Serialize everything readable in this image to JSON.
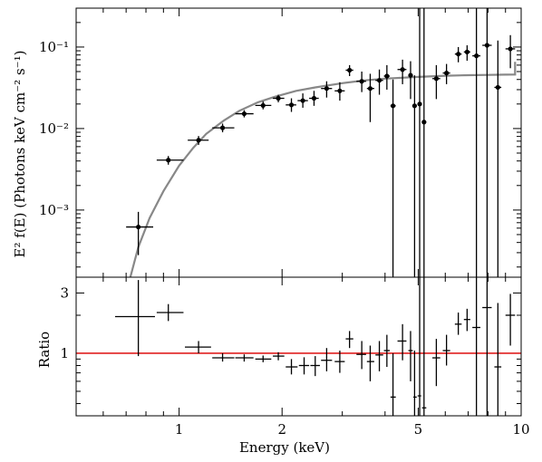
{
  "chart_data": [
    {
      "panel": "top",
      "type": "scatter",
      "yscale": "log",
      "xscale": "log",
      "ylabel": "E² f(E) (Photons keV cm⁻² s⁻¹)",
      "xlim": [
        0.5,
        10
      ],
      "ylim": [
        0.00015,
        0.3
      ],
      "yticks": [
        0.001,
        0.01,
        0.1
      ],
      "ytick_labels": [
        "10⁻³",
        "10⁻²",
        "10⁻¹"
      ],
      "data_color": "#000000",
      "model_color": "#888888",
      "points": [
        {
          "x": 0.76,
          "xlo": 0.7,
          "xhi": 0.84,
          "y": 0.00062,
          "ylo": 0.00028,
          "yhi": 0.00095
        },
        {
          "x": 0.93,
          "xlo": 0.86,
          "xhi": 1.03,
          "y": 0.0041,
          "ylo": 0.0036,
          "yhi": 0.0046
        },
        {
          "x": 1.14,
          "xlo": 1.06,
          "xhi": 1.22,
          "y": 0.0072,
          "ylo": 0.0063,
          "yhi": 0.0081
        },
        {
          "x": 1.34,
          "xlo": 1.25,
          "xhi": 1.45,
          "y": 0.0102,
          "ylo": 0.009,
          "yhi": 0.0115
        },
        {
          "x": 1.55,
          "xlo": 1.46,
          "xhi": 1.65,
          "y": 0.0152,
          "ylo": 0.0137,
          "yhi": 0.0168
        },
        {
          "x": 1.76,
          "xlo": 1.67,
          "xhi": 1.86,
          "y": 0.0192,
          "ylo": 0.0172,
          "yhi": 0.0215
        },
        {
          "x": 1.95,
          "xlo": 1.88,
          "xhi": 2.03,
          "y": 0.0235,
          "ylo": 0.021,
          "yhi": 0.026
        },
        {
          "x": 2.13,
          "xlo": 2.05,
          "xhi": 2.2,
          "y": 0.0195,
          "ylo": 0.016,
          "yhi": 0.0235
        },
        {
          "x": 2.3,
          "xlo": 2.22,
          "xhi": 2.38,
          "y": 0.022,
          "ylo": 0.018,
          "yhi": 0.027
        },
        {
          "x": 2.48,
          "xlo": 2.4,
          "xhi": 2.56,
          "y": 0.0235,
          "ylo": 0.019,
          "yhi": 0.029
        },
        {
          "x": 2.7,
          "xlo": 2.6,
          "xhi": 2.8,
          "y": 0.031,
          "ylo": 0.024,
          "yhi": 0.038
        },
        {
          "x": 2.95,
          "xlo": 2.85,
          "xhi": 3.05,
          "y": 0.029,
          "ylo": 0.022,
          "yhi": 0.037
        },
        {
          "x": 3.15,
          "xlo": 3.07,
          "xhi": 3.23,
          "y": 0.052,
          "ylo": 0.044,
          "yhi": 0.06
        },
        {
          "x": 3.42,
          "xlo": 3.3,
          "xhi": 3.52,
          "y": 0.038,
          "ylo": 0.028,
          "yhi": 0.05
        },
        {
          "x": 3.62,
          "xlo": 3.54,
          "xhi": 3.72,
          "y": 0.031,
          "ylo": 0.012,
          "yhi": 0.047
        },
        {
          "x": 3.85,
          "xlo": 3.75,
          "xhi": 3.95,
          "y": 0.039,
          "ylo": 0.026,
          "yhi": 0.053
        },
        {
          "x": 4.05,
          "xlo": 3.97,
          "xhi": 4.13,
          "y": 0.044,
          "ylo": 0.03,
          "yhi": 0.06
        },
        {
          "x": 4.22,
          "xlo": 4.15,
          "xhi": 4.3,
          "y": 0.019,
          "ylo": 0.00015,
          "yhi": 0.04
        },
        {
          "x": 4.5,
          "xlo": 4.35,
          "xhi": 4.62,
          "y": 0.053,
          "ylo": 0.035,
          "yhi": 0.07
        },
        {
          "x": 4.75,
          "xlo": 4.68,
          "xhi": 4.82,
          "y": 0.045,
          "ylo": 0.023,
          "yhi": 0.067
        },
        {
          "x": 4.88,
          "xlo": 4.84,
          "xhi": 4.95,
          "y": 0.019,
          "ylo": 0.00015,
          "yhi": 0.045
        },
        {
          "x": 5.05,
          "xlo": 4.98,
          "xhi": 5.1,
          "y": 0.02,
          "ylo": 0.00015,
          "yhi": 0.3
        },
        {
          "x": 5.2,
          "xlo": 5.13,
          "xhi": 5.28,
          "y": 0.012,
          "ylo": 0.00015,
          "yhi": 0.3
        },
        {
          "x": 5.65,
          "xlo": 5.5,
          "xhi": 5.8,
          "y": 0.041,
          "ylo": 0.023,
          "yhi": 0.06
        },
        {
          "x": 6.05,
          "xlo": 5.9,
          "xhi": 6.2,
          "y": 0.048,
          "ylo": 0.035,
          "yhi": 0.062
        },
        {
          "x": 6.55,
          "xlo": 6.4,
          "xhi": 6.7,
          "y": 0.082,
          "ylo": 0.065,
          "yhi": 0.1
        },
        {
          "x": 6.95,
          "xlo": 6.8,
          "xhi": 7.1,
          "y": 0.087,
          "ylo": 0.068,
          "yhi": 0.105
        },
        {
          "x": 7.4,
          "xlo": 7.2,
          "xhi": 7.6,
          "y": 0.078,
          "ylo": 0.00015,
          "yhi": 0.3
        },
        {
          "x": 7.95,
          "xlo": 7.7,
          "xhi": 8.2,
          "y": 0.105,
          "ylo": 0.00015,
          "yhi": 0.3
        },
        {
          "x": 8.55,
          "xlo": 8.35,
          "xhi": 8.75,
          "y": 0.032,
          "ylo": 0.00015,
          "yhi": 0.12
        },
        {
          "x": 9.3,
          "xlo": 9.0,
          "xhi": 9.6,
          "y": 0.095,
          "ylo": 0.055,
          "yhi": 0.14
        }
      ],
      "model": [
        {
          "x": 0.72,
          "y": 0.00015
        },
        {
          "x": 0.76,
          "y": 0.00035
        },
        {
          "x": 0.82,
          "y": 0.0008
        },
        {
          "x": 0.9,
          "y": 0.0017
        },
        {
          "x": 1.0,
          "y": 0.0035
        },
        {
          "x": 1.1,
          "y": 0.0058
        },
        {
          "x": 1.2,
          "y": 0.0086
        },
        {
          "x": 1.35,
          "y": 0.0125
        },
        {
          "x": 1.5,
          "y": 0.0165
        },
        {
          "x": 1.7,
          "y": 0.021
        },
        {
          "x": 1.9,
          "y": 0.0245
        },
        {
          "x": 2.2,
          "y": 0.029
        },
        {
          "x": 2.5,
          "y": 0.032
        },
        {
          "x": 3.0,
          "y": 0.036
        },
        {
          "x": 3.5,
          "y": 0.039
        },
        {
          "x": 4.0,
          "y": 0.041
        },
        {
          "x": 5.0,
          "y": 0.043
        },
        {
          "x": 6.0,
          "y": 0.0445
        },
        {
          "x": 7.0,
          "y": 0.0452
        },
        {
          "x": 8.0,
          "y": 0.0455
        },
        {
          "x": 9.0,
          "y": 0.0458
        },
        {
          "x": 9.6,
          "y": 0.046
        },
        {
          "x": 9.6,
          "y": 0.066
        }
      ]
    },
    {
      "panel": "bottom",
      "type": "scatter",
      "xscale": "log",
      "yscale": "log",
      "xlabel": "Energy (keV)",
      "ylabel": "Ratio",
      "xlim": [
        0.5,
        10
      ],
      "ylim": [
        0.32,
        4.0
      ],
      "xticks": [
        1,
        2,
        5,
        10
      ],
      "xtick_labels": [
        "1",
        "2",
        "5",
        "10"
      ],
      "yticks": [
        1,
        3
      ],
      "ytick_labels": [
        "1",
        "3"
      ],
      "reference_line": {
        "y": 1,
        "color": "#e02020"
      },
      "points": [
        {
          "x": 0.76,
          "xlo": 0.65,
          "xhi": 0.85,
          "y": 1.95,
          "ylo": 0.95,
          "yhi": 3.8
        },
        {
          "x": 0.93,
          "xlo": 0.86,
          "xhi": 1.03,
          "y": 2.1,
          "ylo": 1.8,
          "yhi": 2.45
        },
        {
          "x": 1.14,
          "xlo": 1.04,
          "xhi": 1.24,
          "y": 1.12,
          "ylo": 1.0,
          "yhi": 1.25
        },
        {
          "x": 1.34,
          "xlo": 1.25,
          "xhi": 1.45,
          "y": 0.92,
          "ylo": 0.86,
          "yhi": 1.0
        },
        {
          "x": 1.55,
          "xlo": 1.46,
          "xhi": 1.65,
          "y": 0.92,
          "ylo": 0.86,
          "yhi": 0.98
        },
        {
          "x": 1.76,
          "xlo": 1.67,
          "xhi": 1.86,
          "y": 0.9,
          "ylo": 0.85,
          "yhi": 0.96
        },
        {
          "x": 1.95,
          "xlo": 1.88,
          "xhi": 2.03,
          "y": 0.95,
          "ylo": 0.88,
          "yhi": 1.02
        },
        {
          "x": 2.13,
          "xlo": 2.05,
          "xhi": 2.22,
          "y": 0.78,
          "ylo": 0.68,
          "yhi": 0.9
        },
        {
          "x": 2.32,
          "xlo": 2.24,
          "xhi": 2.4,
          "y": 0.8,
          "ylo": 0.68,
          "yhi": 0.93
        },
        {
          "x": 2.5,
          "xlo": 2.42,
          "xhi": 2.58,
          "y": 0.8,
          "ylo": 0.66,
          "yhi": 0.95
        },
        {
          "x": 2.7,
          "xlo": 2.6,
          "xhi": 2.8,
          "y": 0.88,
          "ylo": 0.72,
          "yhi": 1.1
        },
        {
          "x": 2.95,
          "xlo": 2.85,
          "xhi": 3.05,
          "y": 0.86,
          "ylo": 0.7,
          "yhi": 1.05
        },
        {
          "x": 3.15,
          "xlo": 3.07,
          "xhi": 3.23,
          "y": 1.3,
          "ylo": 1.1,
          "yhi": 1.5
        },
        {
          "x": 3.42,
          "xlo": 3.3,
          "xhi": 3.52,
          "y": 0.98,
          "ylo": 0.75,
          "yhi": 1.25
        },
        {
          "x": 3.62,
          "xlo": 3.54,
          "xhi": 3.72,
          "y": 0.86,
          "ylo": 0.6,
          "yhi": 1.15
        },
        {
          "x": 3.85,
          "xlo": 3.75,
          "xhi": 3.95,
          "y": 0.97,
          "ylo": 0.72,
          "yhi": 1.25
        },
        {
          "x": 4.05,
          "xlo": 3.97,
          "xhi": 4.13,
          "y": 1.05,
          "ylo": 0.78,
          "yhi": 1.4
        },
        {
          "x": 4.22,
          "xlo": 4.15,
          "xhi": 4.3,
          "y": 0.45,
          "ylo": 0.32,
          "yhi": 1.0
        },
        {
          "x": 4.5,
          "xlo": 4.35,
          "xhi": 4.62,
          "y": 1.25,
          "ylo": 0.88,
          "yhi": 1.7
        },
        {
          "x": 4.75,
          "xlo": 4.68,
          "xhi": 4.82,
          "y": 1.05,
          "ylo": 0.6,
          "yhi": 1.5
        },
        {
          "x": 4.88,
          "xlo": 4.84,
          "xhi": 4.95,
          "y": 0.45,
          "ylo": 0.32,
          "yhi": 1.05
        },
        {
          "x": 5.05,
          "xlo": 4.98,
          "xhi": 5.1,
          "y": 0.46,
          "ylo": 0.32,
          "yhi": 4.0
        },
        {
          "x": 5.2,
          "xlo": 5.13,
          "xhi": 5.28,
          "y": 0.37,
          "ylo": 0.32,
          "yhi": 4.0
        },
        {
          "x": 5.65,
          "xlo": 5.5,
          "xhi": 5.8,
          "y": 0.92,
          "ylo": 0.55,
          "yhi": 1.3
        },
        {
          "x": 6.05,
          "xlo": 5.9,
          "xhi": 6.2,
          "y": 1.05,
          "ylo": 0.8,
          "yhi": 1.4
        },
        {
          "x": 6.55,
          "xlo": 6.4,
          "xhi": 6.7,
          "y": 1.7,
          "ylo": 1.4,
          "yhi": 2.1
        },
        {
          "x": 6.95,
          "xlo": 6.8,
          "xhi": 7.1,
          "y": 1.85,
          "ylo": 1.5,
          "yhi": 2.25
        },
        {
          "x": 7.4,
          "xlo": 7.2,
          "xhi": 7.6,
          "y": 1.6,
          "ylo": 0.32,
          "yhi": 4.0
        },
        {
          "x": 7.95,
          "xlo": 7.7,
          "xhi": 8.2,
          "y": 2.3,
          "ylo": 0.32,
          "yhi": 4.0
        },
        {
          "x": 8.55,
          "xlo": 8.35,
          "xhi": 8.75,
          "y": 0.78,
          "ylo": 0.32,
          "yhi": 2.5
        },
        {
          "x": 9.3,
          "xlo": 9.0,
          "xhi": 9.6,
          "y": 2.0,
          "ylo": 1.15,
          "yhi": 2.95
        }
      ]
    }
  ]
}
